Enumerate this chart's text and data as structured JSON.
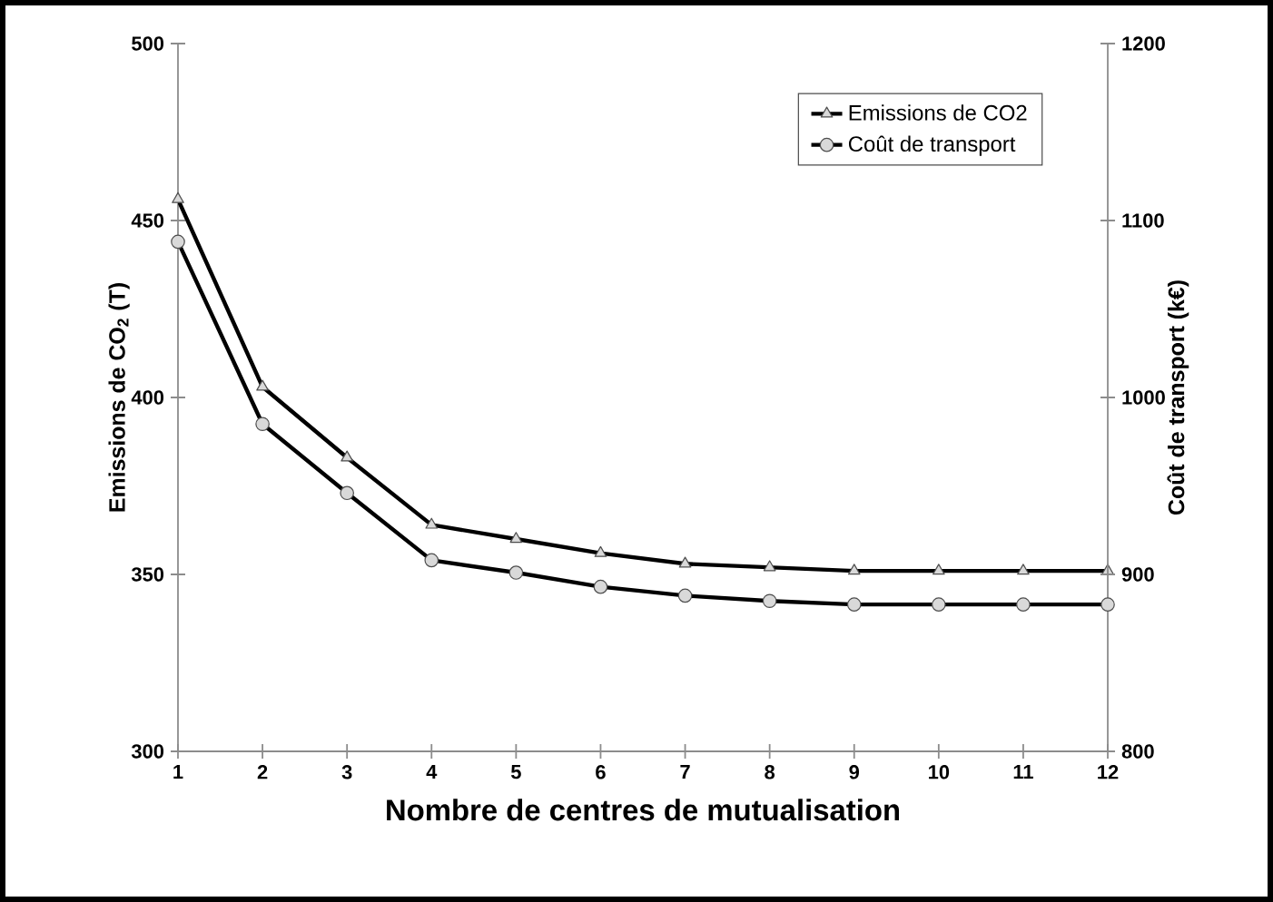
{
  "chart_data": {
    "type": "line",
    "xlabel": "Nombre de centres de mutualisation",
    "ylabel": "Emissions de CO$_{2}$ (T)",
    "y2label": "Coût de transport (k€)",
    "x": [
      1,
      2,
      3,
      4,
      5,
      6,
      7,
      8,
      9,
      10,
      11,
      12
    ],
    "xlim": [
      1,
      12
    ],
    "xticks": [
      1,
      2,
      3,
      4,
      5,
      6,
      7,
      8,
      9,
      10,
      11,
      12
    ],
    "ylim": [
      300,
      500
    ],
    "yticks": [
      300,
      350,
      400,
      450,
      500
    ],
    "y2lim": [
      800,
      1200
    ],
    "y2ticks": [
      800,
      900,
      1000,
      1100,
      1200
    ],
    "grid": false,
    "legend": "top right",
    "line_style": "solid",
    "series": [
      {
        "name": "Emissions de CO2",
        "color": "#000000",
        "marker": "triangle",
        "values": [
          456,
          403,
          383,
          364,
          360,
          356,
          353,
          352,
          351,
          351,
          351,
          351
        ]
      },
      {
        "name": "Coût de transport",
        "color": "#000000",
        "marker": "circle",
        "axis": "y2",
        "values": [
          1088,
          985,
          946,
          908,
          901,
          893,
          888,
          885,
          883,
          883,
          883,
          883
        ]
      }
    ]
  }
}
